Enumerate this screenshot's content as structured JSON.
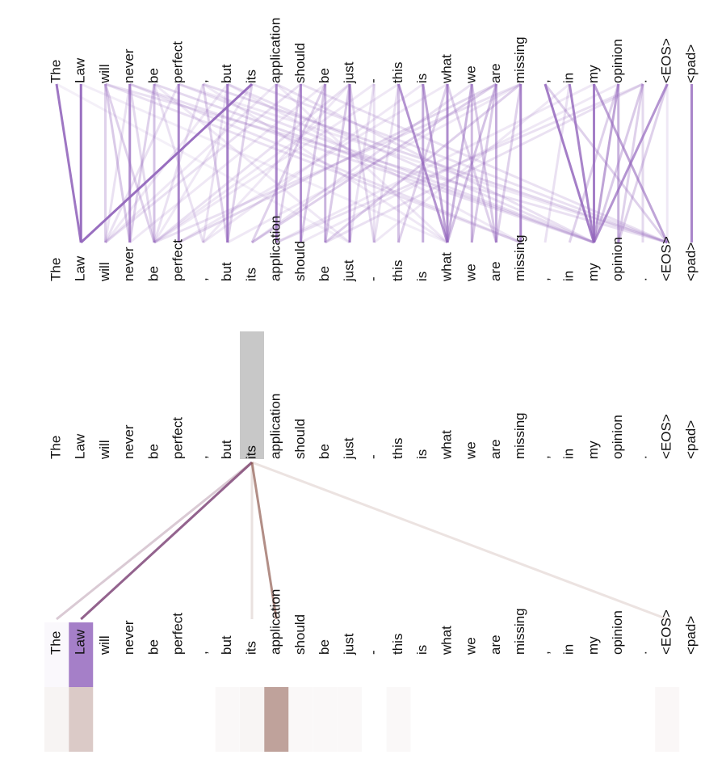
{
  "tokens": [
    "The",
    "Law",
    "will",
    "never",
    "be",
    "perfect",
    ",",
    "but",
    "its",
    "application",
    "should",
    "be",
    "just",
    "-",
    "this",
    "is",
    "what",
    "we",
    "are",
    "missing",
    ",",
    "in",
    "my",
    "opinion",
    ".",
    "<EOS>",
    "<pad>"
  ],
  "colors": {
    "purple": "#9467bd",
    "brown": "#8c564b",
    "highlight": "#c8c8c8",
    "text": "#111111"
  },
  "focus_view": {
    "query_token_index": 8,
    "attention_heads": [
      {
        "color": "#9467bd",
        "weights": [
          0.02,
          0.85,
          0.0,
          0.0,
          0.0,
          0.0,
          0.0,
          0.0,
          0.0,
          0.0,
          0.0,
          0.0,
          0.0,
          0.0,
          0.0,
          0.0,
          0.0,
          0.0,
          0.0,
          0.0,
          0.0,
          0.0,
          0.0,
          0.0,
          0.0,
          0.0,
          0.0
        ]
      },
      {
        "color": "#8c564b",
        "weights": [
          0.04,
          0.3,
          0.0,
          0.0,
          0.0,
          0.0,
          0.0,
          0.01,
          0.03,
          0.55,
          0.01,
          0.01,
          0.01,
          0.0,
          0.01,
          0.0,
          0.0,
          0.0,
          0.0,
          0.0,
          0.0,
          0.0,
          0.0,
          0.0,
          0.0,
          0.02,
          0.0
        ]
      }
    ]
  },
  "full_view": {
    "color": "#9467bd",
    "edges": [
      [
        0,
        1,
        0.9
      ],
      [
        1,
        1,
        0.95
      ],
      [
        2,
        2,
        0.3
      ],
      [
        3,
        3,
        0.75
      ],
      [
        4,
        4,
        0.4
      ],
      [
        5,
        5,
        0.8
      ],
      [
        7,
        7,
        0.85
      ],
      [
        8,
        1,
        0.95
      ],
      [
        9,
        9,
        0.8
      ],
      [
        10,
        10,
        0.75
      ],
      [
        11,
        11,
        0.5
      ],
      [
        12,
        12,
        0.85
      ],
      [
        13,
        13,
        0.2
      ],
      [
        14,
        14,
        0.4
      ],
      [
        15,
        15,
        0.55
      ],
      [
        16,
        16,
        0.75
      ],
      [
        17,
        17,
        0.45
      ],
      [
        18,
        18,
        0.55
      ],
      [
        19,
        19,
        0.8
      ],
      [
        22,
        22,
        0.85
      ],
      [
        23,
        23,
        0.5
      ],
      [
        24,
        24,
        0.25
      ],
      [
        25,
        25,
        0.15
      ],
      [
        26,
        26,
        0.8
      ],
      [
        14,
        16,
        0.7
      ],
      [
        15,
        16,
        0.6
      ],
      [
        17,
        16,
        0.5
      ],
      [
        18,
        16,
        0.4
      ],
      [
        20,
        22,
        0.85
      ],
      [
        21,
        22,
        0.8
      ],
      [
        23,
        22,
        0.6
      ],
      [
        25,
        22,
        0.7
      ],
      [
        22,
        25,
        0.6
      ],
      [
        20,
        25,
        0.3
      ],
      [
        2,
        3,
        0.35
      ],
      [
        2,
        4,
        0.3
      ],
      [
        4,
        3,
        0.3
      ],
      [
        3,
        4,
        0.25
      ],
      [
        4,
        6,
        0.2
      ],
      [
        6,
        7,
        0.3
      ],
      [
        7,
        6,
        0.2
      ],
      [
        8,
        7,
        0.3
      ],
      [
        10,
        9,
        0.3
      ],
      [
        11,
        10,
        0.35
      ],
      [
        11,
        8,
        0.3
      ],
      [
        12,
        11,
        0.35
      ],
      [
        12,
        13,
        0.25
      ],
      [
        13,
        12,
        0.2
      ],
      [
        14,
        13,
        0.2
      ],
      [
        16,
        14,
        0.3
      ],
      [
        16,
        18,
        0.3
      ],
      [
        17,
        18,
        0.35
      ],
      [
        18,
        17,
        0.35
      ],
      [
        19,
        18,
        0.3
      ],
      [
        24,
        23,
        0.3
      ],
      [
        24,
        22,
        0.35
      ],
      [
        23,
        21,
        0.3
      ],
      [
        21,
        20,
        0.2
      ],
      [
        25,
        23,
        0.3
      ],
      [
        2,
        19,
        0.2
      ],
      [
        3,
        19,
        0.2
      ],
      [
        4,
        22,
        0.25
      ],
      [
        5,
        22,
        0.2
      ],
      [
        6,
        25,
        0.25
      ],
      [
        7,
        22,
        0.2
      ],
      [
        8,
        25,
        0.2
      ],
      [
        9,
        22,
        0.2
      ],
      [
        10,
        25,
        0.2
      ],
      [
        2,
        25,
        0.2
      ],
      [
        3,
        22,
        0.2
      ],
      [
        5,
        25,
        0.15
      ],
      [
        7,
        19,
        0.15
      ],
      [
        9,
        16,
        0.15
      ],
      [
        6,
        16,
        0.15
      ],
      [
        4,
        12,
        0.15
      ],
      [
        1,
        16,
        0.12
      ],
      [
        0,
        12,
        0.1
      ],
      [
        18,
        8,
        0.3
      ],
      [
        19,
        11,
        0.3
      ],
      [
        18,
        5,
        0.25
      ],
      [
        17,
        8,
        0.2
      ],
      [
        19,
        4,
        0.2
      ],
      [
        16,
        5,
        0.15
      ],
      [
        24,
        9,
        0.2
      ],
      [
        24,
        11,
        0.2
      ],
      [
        23,
        10,
        0.15
      ],
      [
        19,
        7,
        0.15
      ],
      [
        15,
        6,
        0.15
      ],
      [
        14,
        4,
        0.15
      ],
      [
        21,
        13,
        0.15
      ],
      [
        22,
        9,
        0.15
      ],
      [
        12,
        4,
        0.2
      ],
      [
        13,
        4,
        0.15
      ],
      [
        10,
        2,
        0.2
      ],
      [
        9,
        2,
        0.15
      ],
      [
        11,
        3,
        0.15
      ],
      [
        8,
        4,
        0.15
      ],
      [
        5,
        2,
        0.2
      ],
      [
        3,
        2,
        0.2
      ],
      [
        6,
        4,
        0.2
      ],
      [
        7,
        2,
        0.15
      ],
      [
        12,
        6,
        0.15
      ]
    ]
  }
}
